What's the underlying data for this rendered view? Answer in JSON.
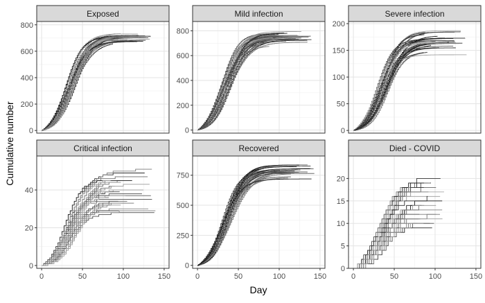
{
  "chart_data": {
    "type": "line",
    "xlabel": "Day",
    "ylabel": "Cumulative number",
    "x_ticks": [
      0,
      50,
      100,
      150
    ],
    "xlim": [
      -6,
      156
    ],
    "grid": true,
    "facets": [
      {
        "title": "Exposed",
        "ylim": [
          -20,
          825
        ],
        "y_ticks": [
          0,
          200,
          400,
          600,
          800
        ],
        "runs": 30,
        "final_range": [
          690,
          780
        ],
        "day_range": [
          80,
          135
        ]
      },
      {
        "title": "Mild infection",
        "ylim": [
          -25,
          875
        ],
        "y_ticks": [
          0,
          200,
          400,
          600,
          800
        ],
        "runs": 30,
        "final_range": [
          740,
          825
        ],
        "day_range": [
          80,
          140
        ]
      },
      {
        "title": "Severe infection",
        "ylim": [
          -5,
          204
        ],
        "y_ticks": [
          0,
          50,
          100,
          150,
          200
        ],
        "runs": 30,
        "final_range": [
          150,
          192
        ],
        "day_range": [
          80,
          145
        ]
      },
      {
        "title": "Critical infection",
        "ylim": [
          -1.5,
          58
        ],
        "y_ticks": [
          0,
          20,
          40
        ],
        "runs": 30,
        "final_range": [
          30,
          53
        ],
        "day_range": [
          75,
          142
        ]
      },
      {
        "title": "Recovered",
        "ylim": [
          -25,
          910
        ],
        "y_ticks": [
          0,
          250,
          500,
          750
        ],
        "runs": 30,
        "final_range": [
          780,
          860
        ],
        "day_range": [
          80,
          145
        ]
      },
      {
        "title": "Died - COVID",
        "ylim": [
          0,
          25
        ],
        "y_ticks": [
          0,
          5,
          10,
          15,
          20
        ],
        "runs": 30,
        "final_range": [
          10,
          22
        ],
        "day_range": [
          75,
          115
        ]
      }
    ]
  }
}
